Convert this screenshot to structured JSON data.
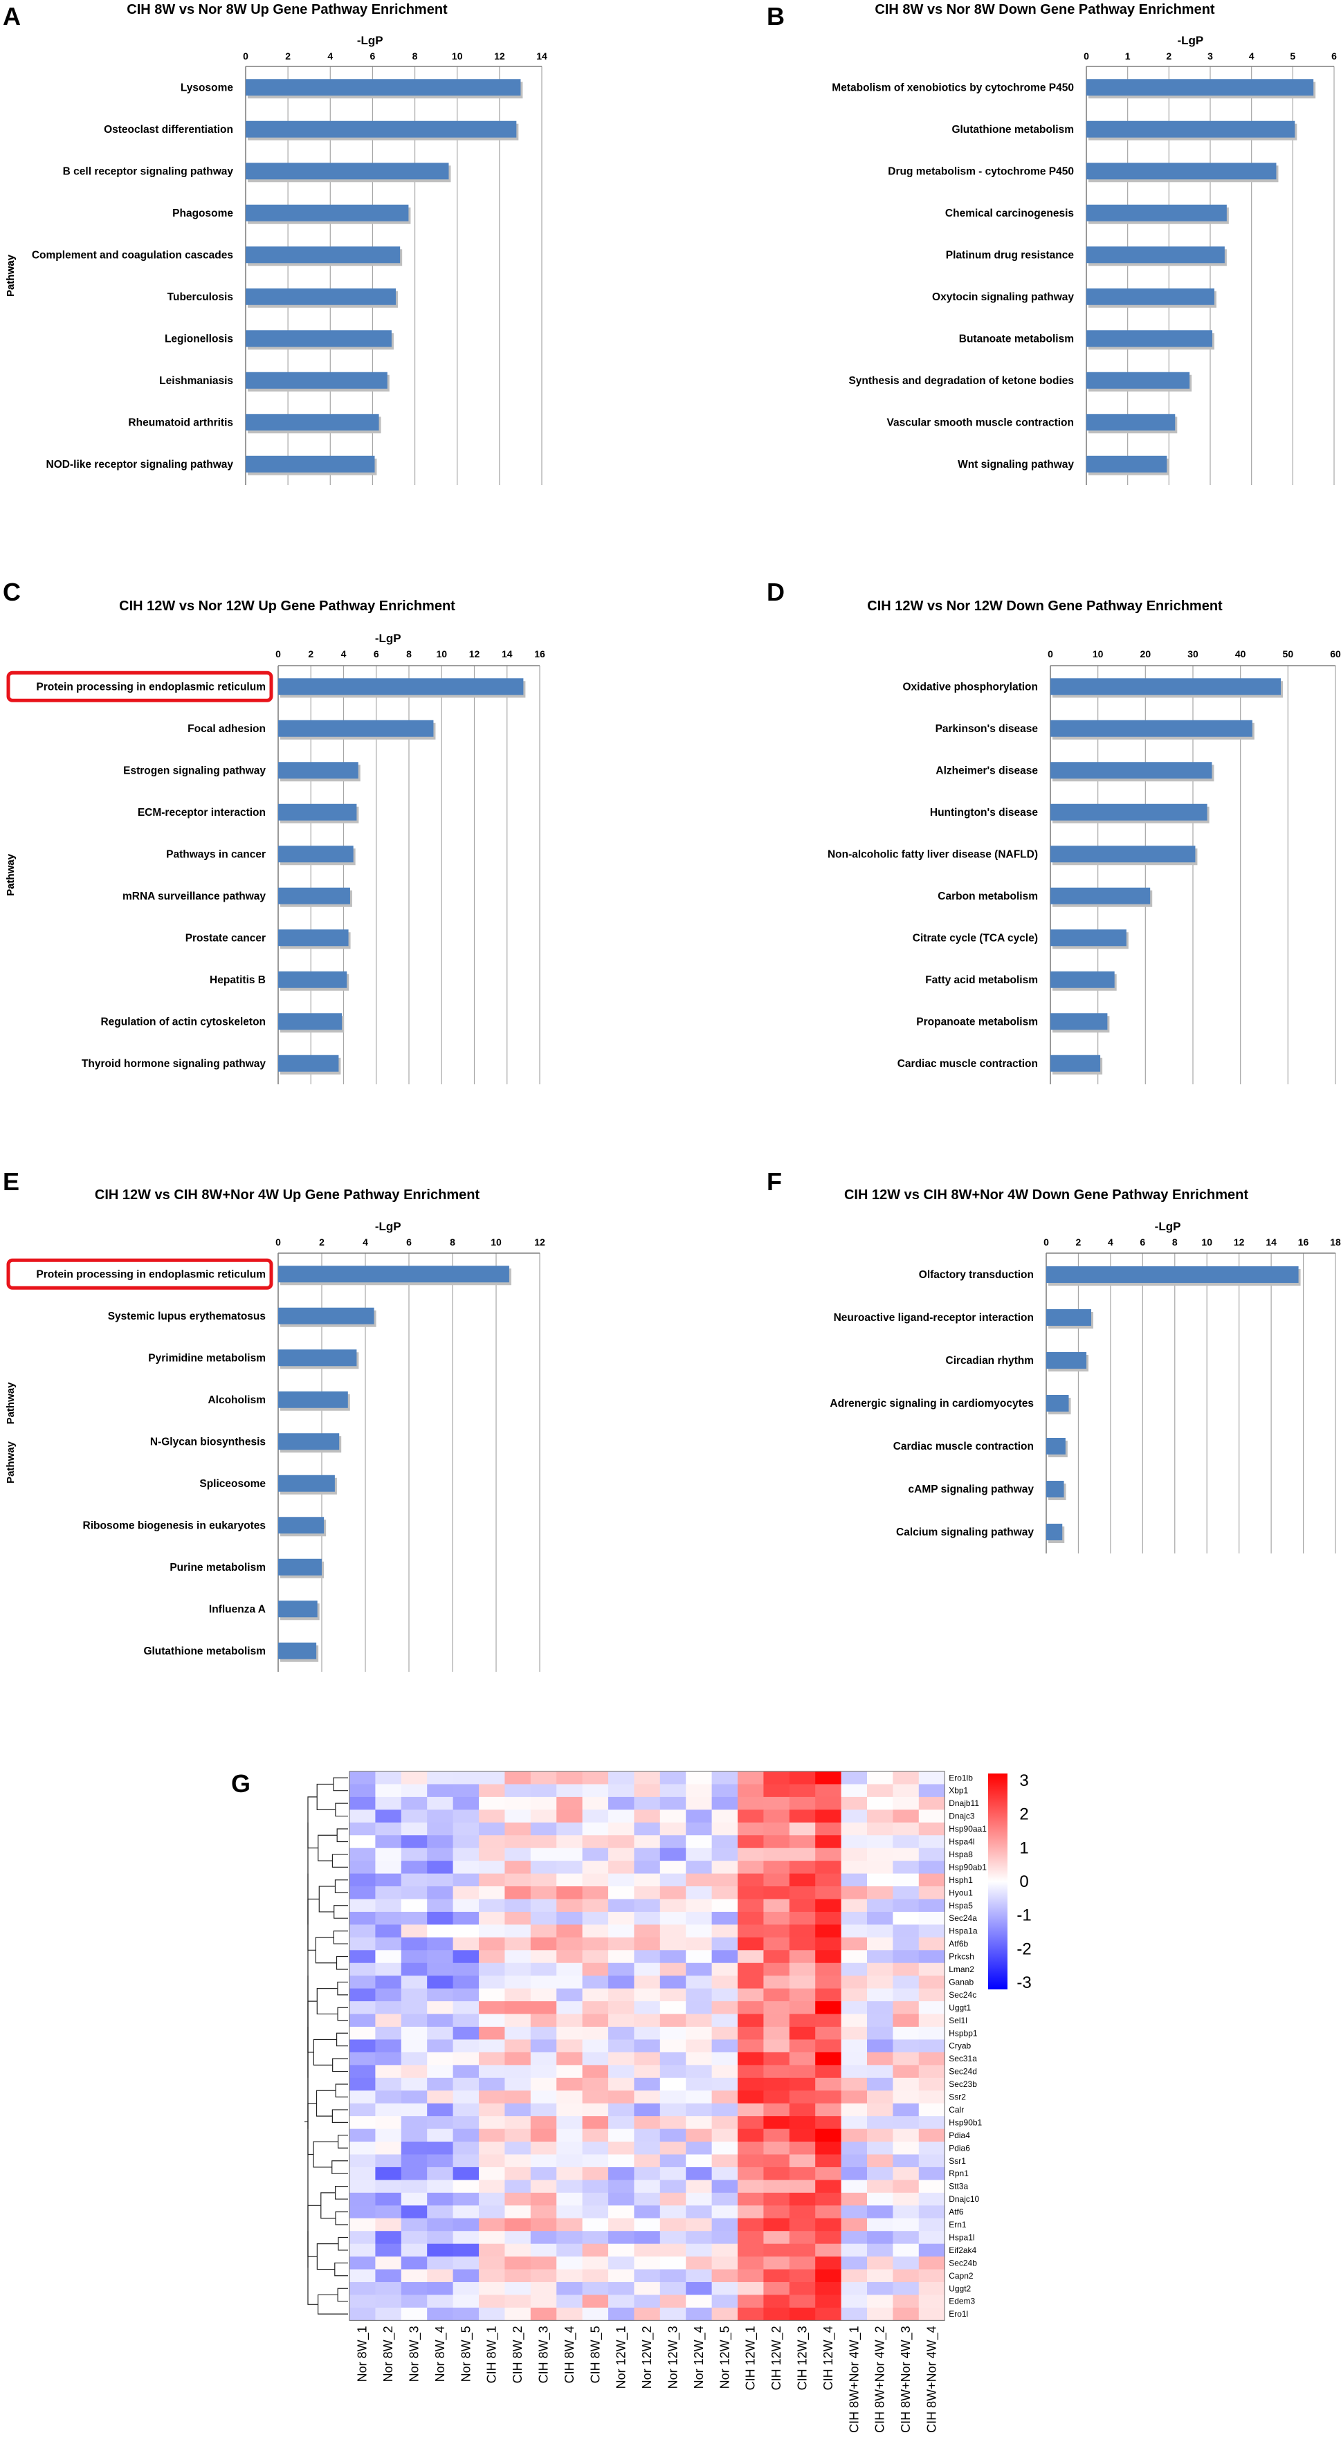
{
  "chart_data": [
    {
      "panel": "A",
      "type": "bar",
      "orientation": "horizontal",
      "title": "CIH 8W vs Nor 8W Up Gene Pathway Enrichment",
      "xlabel": "-LgP",
      "ylabel": "Pathway",
      "xlim": [
        0,
        14
      ],
      "xticks": [
        0,
        2,
        4,
        6,
        8,
        10,
        12,
        14
      ],
      "categories": [
        "Lysosome",
        "Osteoclast differentiation",
        "B cell receptor signaling pathway",
        "Phagosome",
        "Complement and coagulation cascades",
        "Tuberculosis",
        "Legionellosis",
        "Leishmaniasis",
        "Rheumatoid arthritis",
        "NOD-like receptor signaling pathway"
      ],
      "values": [
        13.0,
        12.8,
        9.6,
        7.7,
        7.3,
        7.1,
        6.9,
        6.7,
        6.3,
        6.1
      ],
      "highlight": null,
      "bar_color": "#4f81bd"
    },
    {
      "panel": "B",
      "type": "bar",
      "orientation": "horizontal",
      "title": "CIH 8W vs Nor 8W Down Gene Pathway Enrichment",
      "xlabel": "-LgP",
      "ylabel": "Pathway",
      "xlim": [
        0,
        6
      ],
      "xticks": [
        0,
        1,
        2,
        3,
        4,
        5,
        6
      ],
      "categories": [
        "Metabolism of xenobiotics by cytochrome P450",
        "Glutathione metabolism",
        "Drug metabolism - cytochrome P450",
        "Chemical carcinogenesis",
        "Platinum drug resistance",
        "Oxytocin signaling pathway",
        "Butanoate metabolism",
        "Synthesis and degradation of ketone bodies",
        "Vascular smooth muscle contraction",
        "Wnt signaling pathway"
      ],
      "values": [
        5.5,
        5.05,
        4.6,
        3.4,
        3.35,
        3.1,
        3.05,
        2.5,
        2.15,
        1.95
      ],
      "highlight": null,
      "bar_color": "#4f81bd"
    },
    {
      "panel": "C",
      "type": "bar",
      "orientation": "horizontal",
      "title": "CIH 12W vs Nor 12W Up Gene Pathway Enrichment",
      "xlabel": "-LgP",
      "ylabel": "Pathway",
      "xlim": [
        0,
        16
      ],
      "xticks": [
        0,
        2,
        4,
        6,
        8,
        10,
        12,
        14,
        16
      ],
      "categories": [
        "Protein processing in endoplasmic reticulum",
        "Focal adhesion",
        "Estrogen signaling pathway",
        "ECM-receptor interaction",
        "Pathways in cancer",
        "mRNA surveillance pathway",
        "Prostate cancer",
        "Hepatitis B",
        "Regulation of actin cytoskeleton",
        "Thyroid hormone signaling pathway"
      ],
      "values": [
        15.0,
        9.5,
        4.9,
        4.8,
        4.6,
        4.4,
        4.3,
        4.2,
        3.9,
        3.7
      ],
      "highlight": "Protein processing in endoplasmic reticulum",
      "bar_color": "#4f81bd"
    },
    {
      "panel": "D",
      "type": "bar",
      "orientation": "horizontal",
      "title": "CIH 12W vs Nor 12W Down Gene Pathway Enrichment",
      "xlabel": "",
      "ylabel": "Pathway",
      "xlim": [
        0,
        60
      ],
      "xticks": [
        0,
        10,
        20,
        30,
        40,
        50,
        60
      ],
      "categories": [
        "Oxidative phosphorylation",
        "Parkinson's disease",
        "Alzheimer's disease",
        "Huntington's disease",
        "Non-alcoholic fatty liver disease (NAFLD)",
        "Carbon metabolism",
        "Citrate cycle (TCA cycle)",
        "Fatty acid metabolism",
        "Propanoate metabolism",
        "Cardiac muscle contraction"
      ],
      "values": [
        48.5,
        42.5,
        34.0,
        33.0,
        30.5,
        21.0,
        16.0,
        13.5,
        12.0,
        10.5
      ],
      "highlight": null,
      "bar_color": "#4f81bd"
    },
    {
      "panel": "E",
      "type": "bar",
      "orientation": "horizontal",
      "title": "CIH 12W vs CIH 8W+Nor 4W Up Gene Pathway Enrichment",
      "xlabel": "-LgP",
      "ylabel": "Pathway",
      "xlim": [
        0,
        12
      ],
      "xticks": [
        0,
        2,
        4,
        6,
        8,
        10,
        12
      ],
      "categories": [
        "Protein processing in endoplasmic reticulum",
        "Systemic lupus erythematosus",
        "Pyrimidine metabolism",
        "Alcoholism",
        "N-Glycan biosynthesis",
        "Spliceosome",
        "Ribosome biogenesis in eukaryotes",
        "Purine metabolism",
        "Influenza A",
        "Glutathione metabolism"
      ],
      "values": [
        10.6,
        4.4,
        3.6,
        3.2,
        2.8,
        2.6,
        2.1,
        2.0,
        1.8,
        1.75
      ],
      "highlight": "Protein processing in endoplasmic reticulum",
      "bar_color": "#4f81bd"
    },
    {
      "panel": "F",
      "type": "bar",
      "orientation": "horizontal",
      "title": "CIH 12W vs CIH 8W+Nor 4W Down Gene Pathway Enrichment",
      "xlabel": "-LgP",
      "ylabel": "Pathway",
      "xlim": [
        0,
        18
      ],
      "xticks": [
        0,
        2,
        4,
        6,
        8,
        10,
        12,
        14,
        16,
        18
      ],
      "categories": [
        "Olfactory transduction",
        "Neuroactive ligand-receptor interaction",
        "Circadian rhythm",
        "Adrenergic signaling in cardiomyocytes",
        "Cardiac muscle contraction",
        "cAMP signaling pathway",
        "Calcium signaling pathway"
      ],
      "values": [
        15.7,
        2.8,
        2.5,
        1.4,
        1.2,
        1.1,
        1.0
      ],
      "highlight": null,
      "bar_color": "#4f81bd"
    },
    {
      "panel": "G",
      "type": "heatmap",
      "title": "",
      "samples": [
        "Nor 8W_1",
        "Nor 8W_2",
        "Nor 8W_3",
        "Nor 8W_4",
        "Nor 8W_5",
        "CIH 8W_1",
        "CIH 8W_2",
        "CIH 8W_3",
        "CIH 8W_4",
        "CIH 8W_5",
        "Nor 12W_1",
        "Nor 12W_2",
        "Nor 12W_3",
        "Nor 12W_4",
        "Nor 12W_5",
        "CIH 12W_1",
        "CIH 12W_2",
        "CIH 12W_3",
        "CIH 12W_4",
        "CIH 8W+Nor 4W_1",
        "CIH 8W+Nor 4W_2",
        "CIH 8W+Nor 4W_3",
        "CIH 8W+Nor 4W_4"
      ],
      "genes": [
        "Ero1lb",
        "Xbp1",
        "Dnajb11",
        "Dnajc3",
        "Hsp90aa1",
        "Hspa4l",
        "Hspa8",
        "Hsp90ab1",
        "Hsph1",
        "Hyou1",
        "Hspa5",
        "Sec24a",
        "Hspa1a",
        "Atf6b",
        "Prkcsh",
        "Lman2",
        "Ganab",
        "Sec24c",
        "Uggt1",
        "Sel1l",
        "Hspbp1",
        "Cryab",
        "Sec31a",
        "Sec24d",
        "Sec23b",
        "Ssr2",
        "Calr",
        "Hsp90b1",
        "Pdia4",
        "Pdia6",
        "Ssr1",
        "Rpn1",
        "Stt3a",
        "Dnajc10",
        "Atf6",
        "Ern1",
        "Hspa1l",
        "Eif2ak4",
        "Sec24b",
        "Capn2",
        "Uggt2",
        "Edem3",
        "Ero1l"
      ],
      "group_profiles": {
        "Nor 8W": -0.7,
        "CIH 8W": 0.2,
        "Nor 12W": -0.2,
        "CIH 12W": 1.6,
        "CIH 8W+Nor 4W": 0.0
      },
      "color_scale": {
        "min": -3,
        "max": 3,
        "ticks": [
          3,
          2,
          1,
          0,
          -1,
          -2,
          -3
        ],
        "colors": [
          "#0000ff",
          "#ffffff",
          "#ff0000"
        ]
      }
    }
  ],
  "panel_letters": [
    "A",
    "B",
    "C",
    "D",
    "E",
    "F",
    "G"
  ]
}
